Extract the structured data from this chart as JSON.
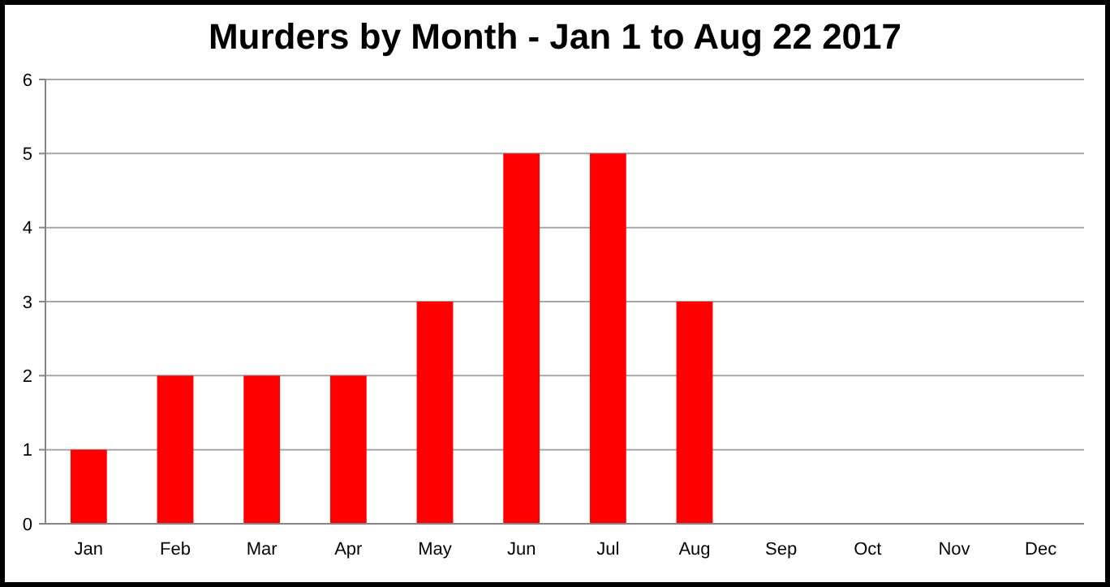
{
  "chart_data": {
    "type": "bar",
    "title": "Murders by Month - Jan 1 to Aug 22 2017",
    "categories": [
      "Jan",
      "Feb",
      "Mar",
      "Apr",
      "May",
      "Jun",
      "Jul",
      "Aug",
      "Sep",
      "Oct",
      "Nov",
      "Dec"
    ],
    "values": [
      1,
      2,
      2,
      2,
      3,
      5,
      5,
      3,
      0,
      0,
      0,
      0
    ],
    "color": "#ff0000",
    "ylim": [
      0,
      6
    ],
    "yticks": [
      0,
      1,
      2,
      3,
      4,
      5,
      6
    ],
    "grid": "y"
  }
}
